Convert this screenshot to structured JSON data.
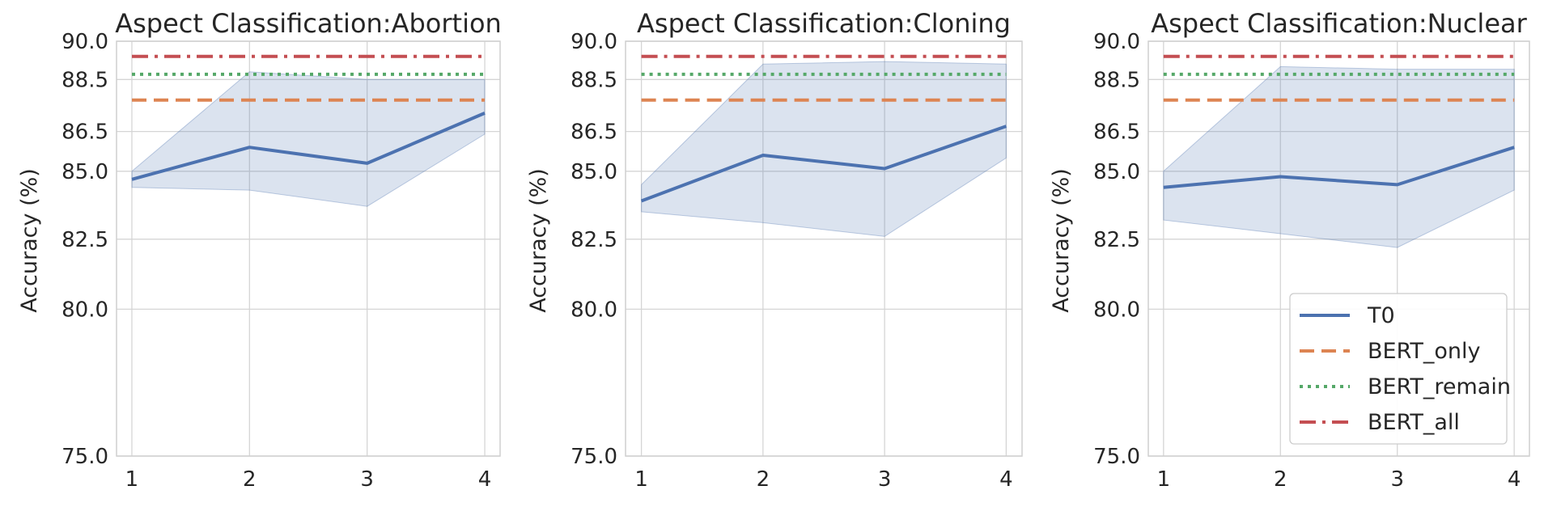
{
  "chart_data": [
    {
      "type": "line",
      "title": "Aspect Classification:Abortion",
      "xlabel": "",
      "ylabel": "Accuracy (%)",
      "x": [
        1,
        2,
        3,
        4
      ],
      "x_ticks": [
        "1",
        "2",
        "3",
        "4"
      ],
      "y_ticks": [
        "75.0",
        "80.0",
        "82.5",
        "85.0",
        "86.5",
        "88.5",
        "90.0"
      ],
      "ylim": [
        75,
        90
      ],
      "y_scale": "log",
      "grid": true,
      "series": [
        {
          "name": "T0",
          "values": [
            84.7,
            85.9,
            85.3,
            87.2
          ],
          "band_low": [
            84.4,
            84.3,
            83.7,
            86.4
          ],
          "band_high": [
            85.0,
            88.8,
            88.5,
            88.5
          ]
        },
        {
          "name": "BERT_only",
          "values": [
            87.7,
            87.7,
            87.7,
            87.7
          ]
        },
        {
          "name": "BERT_remain",
          "values": [
            88.7,
            88.7,
            88.7,
            88.7
          ]
        },
        {
          "name": "BERT_all",
          "values": [
            89.4,
            89.4,
            89.4,
            89.4
          ]
        }
      ]
    },
    {
      "type": "line",
      "title": "Aspect Classification:Cloning",
      "xlabel": "",
      "ylabel": "Accuracy (%)",
      "x": [
        1,
        2,
        3,
        4
      ],
      "x_ticks": [
        "1",
        "2",
        "3",
        "4"
      ],
      "y_ticks": [
        "75.0",
        "80.0",
        "82.5",
        "85.0",
        "86.5",
        "88.5",
        "90.0"
      ],
      "ylim": [
        75,
        90
      ],
      "y_scale": "log",
      "grid": true,
      "series": [
        {
          "name": "T0",
          "values": [
            83.9,
            85.6,
            85.1,
            86.7
          ],
          "band_low": [
            83.5,
            83.1,
            82.6,
            85.5
          ],
          "band_high": [
            84.5,
            89.1,
            89.2,
            89.1
          ]
        },
        {
          "name": "BERT_only",
          "values": [
            87.7,
            87.7,
            87.7,
            87.7
          ]
        },
        {
          "name": "BERT_remain",
          "values": [
            88.7,
            88.7,
            88.7,
            88.7
          ]
        },
        {
          "name": "BERT_all",
          "values": [
            89.4,
            89.4,
            89.4,
            89.4
          ]
        }
      ]
    },
    {
      "type": "line",
      "title": "Aspect Classification:Nuclear",
      "xlabel": "",
      "ylabel": "Accuracy (%)",
      "x": [
        1,
        2,
        3,
        4
      ],
      "x_ticks": [
        "1",
        "2",
        "3",
        "4"
      ],
      "y_ticks": [
        "75.0",
        "80.0",
        "82.5",
        "85.0",
        "86.5",
        "88.5",
        "90.0"
      ],
      "ylim": [
        75,
        90
      ],
      "y_scale": "log",
      "grid": true,
      "legend": "lower-right",
      "series": [
        {
          "name": "T0",
          "values": [
            84.4,
            84.8,
            84.5,
            85.9
          ],
          "band_low": [
            83.2,
            82.7,
            82.2,
            84.3
          ],
          "band_high": [
            85.0,
            89.0,
            88.9,
            88.9
          ]
        },
        {
          "name": "BERT_only",
          "values": [
            87.7,
            87.7,
            87.7,
            87.7
          ]
        },
        {
          "name": "BERT_remain",
          "values": [
            88.7,
            88.7,
            88.7,
            88.7
          ]
        },
        {
          "name": "BERT_all",
          "values": [
            89.4,
            89.4,
            89.4,
            89.4
          ]
        }
      ]
    }
  ],
  "styles": {
    "T0": {
      "color": "#4c72b0",
      "dash": ""
    },
    "BERT_only": {
      "color": "#dd8452",
      "dash": "18,9"
    },
    "BERT_remain": {
      "color": "#55a868",
      "dash": "4,6"
    },
    "BERT_all": {
      "color": "#c44e52",
      "dash": "20,8,4,8"
    },
    "band": "#4c72b0",
    "grid": "#d5d5d5",
    "axes": "#cfcfcf"
  }
}
